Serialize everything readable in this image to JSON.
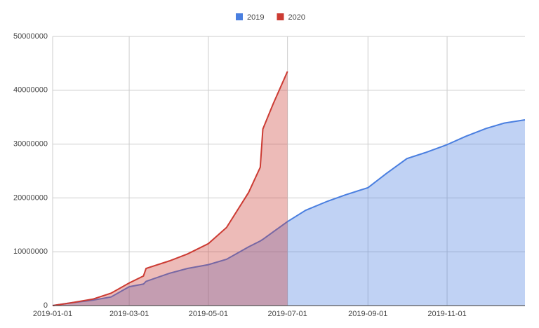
{
  "chart_data": {
    "type": "area",
    "x": [
      "2019-01-01",
      "2019-01-15",
      "2019-02-01",
      "2019-02-15",
      "2019-03-01",
      "2019-03-12",
      "2019-03-14",
      "2019-04-01",
      "2019-04-15",
      "2019-05-01",
      "2019-05-15",
      "2019-06-01",
      "2019-06-10",
      "2019-06-12",
      "2019-06-20",
      "2019-07-01",
      "2019-07-15",
      "2019-08-01",
      "2019-08-15",
      "2019-09-01",
      "2019-09-15",
      "2019-10-01",
      "2019-10-15",
      "2019-11-01",
      "2019-11-15",
      "2019-12-01",
      "2019-12-15",
      "2019-12-31"
    ],
    "series": [
      {
        "name": "2019",
        "color": "#4a7fe0",
        "values": [
          0,
          500000,
          1000000,
          1600000,
          3500000,
          4000000,
          4500000,
          6000000,
          6900000,
          7600000,
          8600000,
          10900000,
          12000000,
          12300000,
          13700000,
          15600000,
          17700000,
          19400000,
          20600000,
          21900000,
          24500000,
          27300000,
          28400000,
          29900000,
          31400000,
          32900000,
          33900000,
          34500000
        ]
      },
      {
        "name": "2020",
        "color": "#cc3b33",
        "values": [
          0,
          500000,
          1200000,
          2300000,
          4200000,
          5500000,
          6900000,
          8300000,
          9600000,
          11500000,
          14500000,
          21000000,
          25700000,
          32800000,
          37500000,
          43500000,
          null,
          null,
          null,
          null,
          null,
          null,
          null,
          null,
          null,
          null,
          null,
          null
        ]
      }
    ],
    "xlim": [
      "2019-01-01",
      "2019-12-31"
    ],
    "xticks": [
      "2019-01-01",
      "2019-03-01",
      "2019-05-01",
      "2019-07-01",
      "2019-09-01",
      "2019-11-01"
    ],
    "ylim": [
      0,
      50000000
    ],
    "yticks": [
      0,
      10000000,
      20000000,
      30000000,
      40000000,
      50000000
    ],
    "grid": true,
    "legend": "top"
  }
}
